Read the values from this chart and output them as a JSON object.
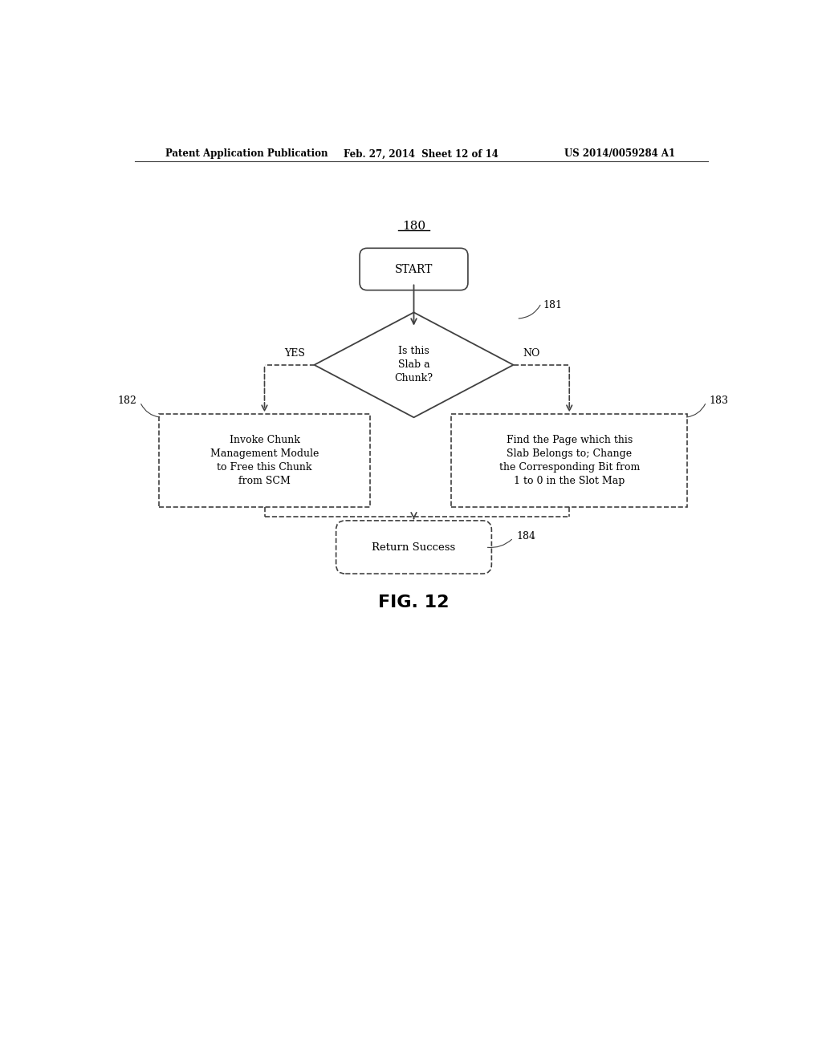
{
  "bg_color": "#ffffff",
  "header_left": "Patent Application Publication",
  "header_mid": "Feb. 27, 2014  Sheet 12 of 14",
  "header_right": "US 2014/0059284 A1",
  "diagram_label": "180",
  "fig_label": "FIG. 12",
  "start_text": "START",
  "diamond_text": "Is this\nSlab a\nChunk?",
  "diamond_label": "181",
  "yes_text": "YES",
  "no_text": "NO",
  "box_left_text": "Invoke Chunk\nManagement Module\nto Free this Chunk\nfrom SCM",
  "box_left_label": "182",
  "box_right_text": "Find the Page which this\nSlab Belongs to; Change\nthe Corresponding Bit from\n1 to 0 in the Slot Map",
  "box_right_label": "183",
  "end_text": "Return Success",
  "end_label": "184",
  "line_color": "#404040",
  "text_color": "#000000",
  "header_color": "#000000"
}
